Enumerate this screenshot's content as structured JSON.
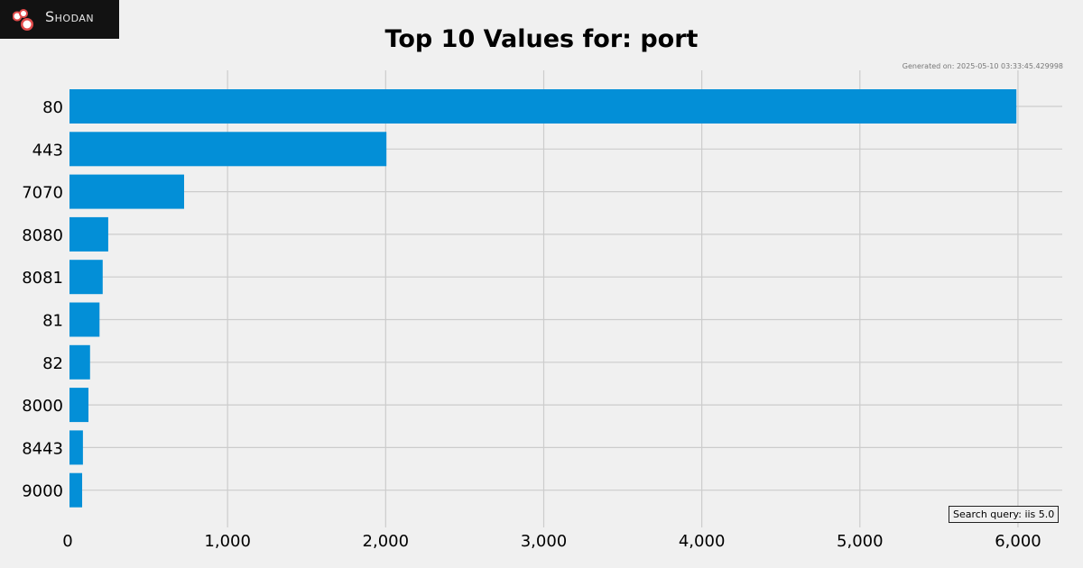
{
  "brand": {
    "name": "Shodan"
  },
  "footer": {
    "generated": "Generated on: 2025-05-10 03:33:45.429998",
    "query": "Search query: iis 5.0"
  },
  "chart_data": {
    "type": "bar",
    "orientation": "horizontal",
    "title": "Top 10 Values for: port",
    "categories": [
      "80",
      "443",
      "7070",
      "8080",
      "8081",
      "81",
      "82",
      "8000",
      "8443",
      "9000"
    ],
    "values": [
      5990,
      2005,
      725,
      245,
      210,
      190,
      130,
      120,
      85,
      80
    ],
    "xlim": [
      0,
      6280
    ],
    "x_ticks": [
      0,
      1000,
      2000,
      3000,
      4000,
      5000,
      6000
    ],
    "x_tick_labels": [
      "0",
      "1,000",
      "2,000",
      "3,000",
      "4,000",
      "5,000",
      "6,000"
    ],
    "xlabel": "",
    "ylabel": "",
    "grid": true,
    "bar_color": "#038fd7",
    "grid_color": "#cccccc",
    "background": "#f0f0f0"
  }
}
